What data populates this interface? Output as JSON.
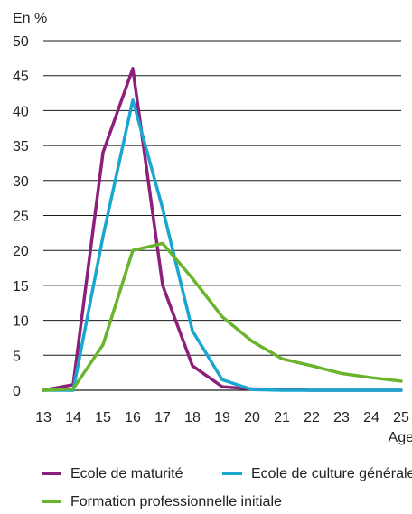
{
  "chart_data": {
    "type": "line",
    "ylabel": "En %",
    "xlabel": "Age",
    "x": [
      13,
      14,
      15,
      16,
      17,
      18,
      19,
      20,
      21,
      22,
      23,
      24,
      25
    ],
    "ylim": [
      0,
      50
    ],
    "yticks": [
      0,
      5,
      10,
      15,
      20,
      25,
      30,
      35,
      40,
      45,
      50
    ],
    "grid": "horizontal",
    "legend_position": "bottom",
    "series": [
      {
        "name": "Ecole de maturité",
        "color": "#8b1f7a",
        "values": [
          0,
          0.8,
          34,
          46,
          15,
          3.5,
          0.5,
          0.2,
          0.1,
          0,
          0,
          0,
          0
        ]
      },
      {
        "name": "Ecole de culture générale",
        "color": "#1aa7cf",
        "values": [
          0,
          0,
          22,
          41.5,
          26,
          8.5,
          1.5,
          0.1,
          0,
          0,
          0,
          0,
          0
        ]
      },
      {
        "name": "Formation professionnelle initiale",
        "color": "#6ab42d",
        "values": [
          0,
          0.2,
          6.5,
          20,
          21,
          16,
          10.5,
          7,
          4.5,
          3.5,
          2.4,
          1.8,
          1.3
        ]
      }
    ]
  }
}
